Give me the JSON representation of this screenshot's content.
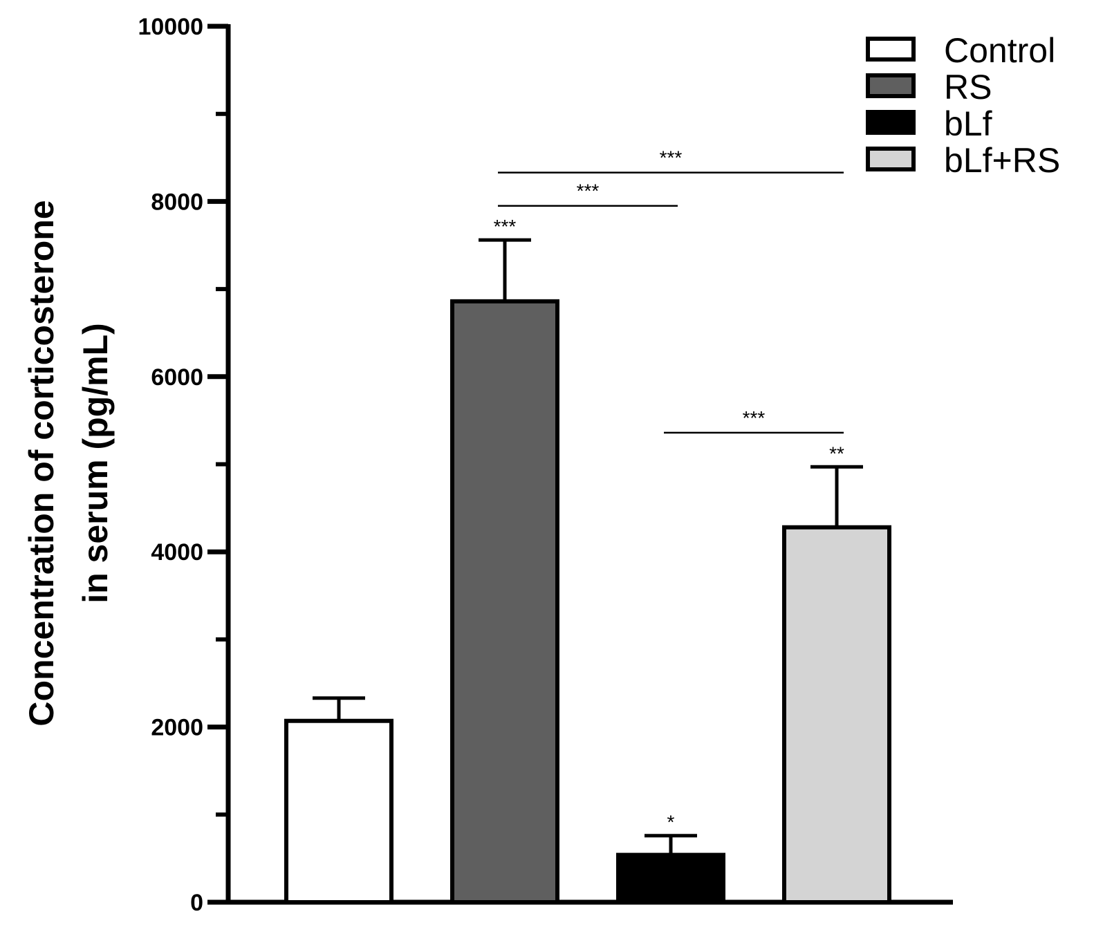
{
  "chart_data": {
    "type": "bar",
    "title": "",
    "xlabel": "",
    "ylabel_lines": [
      "Concentration of corticosterone",
      "in serum (pg/mL)"
    ],
    "ylim": [
      0,
      10000
    ],
    "yticks": [
      0,
      2000,
      4000,
      6000,
      8000,
      10000
    ],
    "ytick_labels": [
      "0",
      "2000",
      "4000",
      "6000",
      "8000",
      "10000"
    ],
    "minor_tick_step": 1000,
    "legend_position": "top-right",
    "bars": [
      {
        "name": "Control",
        "value": 2070,
        "error": 260,
        "color": "#ffffff",
        "annotation": ""
      },
      {
        "name": "RS",
        "value": 6860,
        "error": 700,
        "color": "#5f5f5f",
        "annotation": "***"
      },
      {
        "name": "bLf",
        "value": 540,
        "error": 220,
        "color": "#000000",
        "annotation": "*"
      },
      {
        "name": "bLf+RS",
        "value": 4280,
        "error": 690,
        "color": "#d4d4d4",
        "annotation": "**"
      }
    ],
    "comparisons": [
      {
        "from": 1,
        "to": 3,
        "y": 8330,
        "label": "***"
      },
      {
        "from": 1,
        "to": 2,
        "y": 7950,
        "label": "***"
      },
      {
        "from": 2,
        "to": 3,
        "y": 5360,
        "label": "***"
      }
    ]
  }
}
